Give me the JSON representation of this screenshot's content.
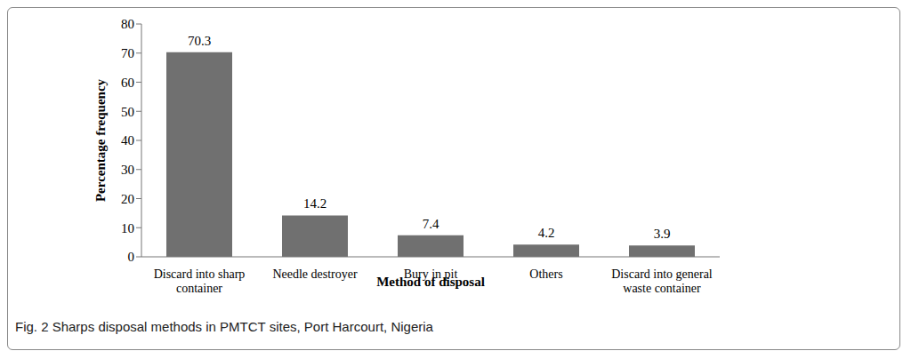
{
  "chart_data": {
    "type": "bar",
    "title": "Fig. 2 Sharps disposal methods in PMTCT sites, Port Harcourt, Nigeria",
    "x_label": "Method of disposal",
    "y_label": "Percentage frequency",
    "categories": [
      "Discard into sharp container",
      "Needle destroyer",
      "Bury in pit",
      "Others",
      "Discard into general waste container"
    ],
    "values": [
      70.3,
      14.2,
      7.4,
      4.2,
      3.9
    ],
    "color": "#707070",
    "ylim": [
      0,
      80
    ],
    "yticks": [
      0,
      10,
      20,
      30,
      40,
      50,
      60,
      70,
      80
    ],
    "grid": false,
    "data_labels": true
  }
}
